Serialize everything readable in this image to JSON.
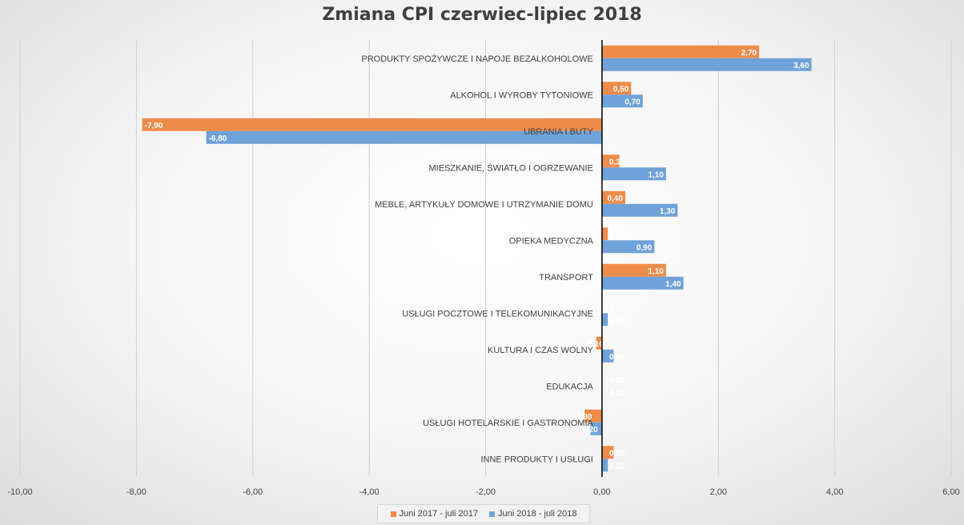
{
  "chart_data": {
    "type": "bar",
    "orientation": "horizontal",
    "title": "Zmiana CPI czerwiec-lipiec 2018",
    "categories": [
      "PRODUKTY SPOŻYWCZE I NAPOJE BEZALKOHOLOWE",
      "ALKOHOL I WYROBY TYTONIOWE",
      "UBRANIA I BUTY",
      "MIESZKANIE, ŚWIATŁO I OGRZEWANIE",
      "MEBLE, ARTYKUŁY DOMOWE I UTRZYMANIE DOMU",
      "OPIEKA MEDYCZNA",
      "TRANSPORT",
      "USŁUGI POCZTOWE I TELEKOMUNIKACYJNE",
      "KULTURA I CZAS WOLNY",
      "EDUKACJA",
      "USŁUGI HOTELARSKIE I GASTRONOMIA",
      "INNE PRODUKTY I USŁUGI"
    ],
    "series": [
      {
        "name": "Juni 2017 - juli 2017",
        "color": "#ED8B4A",
        "values": [
          2.7,
          0.5,
          -7.9,
          0.3,
          0.4,
          0.1,
          1.1,
          0.0,
          -0.1,
          0.0,
          -0.3,
          0.2
        ],
        "labels": [
          "2,70",
          "0,50",
          "-7,90",
          "0,30",
          "0,40",
          "0,10",
          "1,10",
          "0,00",
          "-0,10",
          "0,00",
          "-0,30",
          "0,20"
        ]
      },
      {
        "name": "Juni 2018 - juli 2018",
        "color": "#6FA2D8",
        "values": [
          3.6,
          0.7,
          -6.8,
          1.1,
          1.3,
          0.9,
          1.4,
          0.1,
          0.2,
          0.0,
          -0.2,
          0.1
        ],
        "labels": [
          "3,60",
          "0,70",
          "-6,80",
          "1,10",
          "1,30",
          "0,90",
          "1,40",
          "0,10",
          "0,20",
          "0,00",
          "-0,20",
          "0,10"
        ]
      }
    ],
    "xlim": [
      -10,
      6
    ],
    "x_ticks": [
      -10,
      -8,
      -6,
      -4,
      -2,
      0,
      2,
      4,
      6
    ],
    "x_tick_labels": [
      "-10,00",
      "-8,00",
      "-6,00",
      "-4,00",
      "-2,00",
      "0,00",
      "2,00",
      "4,00",
      "6,00"
    ],
    "grid": true,
    "legend_position": "bottom"
  }
}
